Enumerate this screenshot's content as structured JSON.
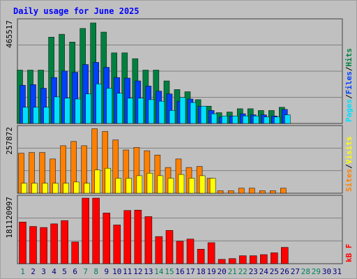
{
  "title": "Daily usage for June 2025",
  "colors": {
    "background": "#c0c0c0",
    "hits": "#008040",
    "files": "#0040ff",
    "pages": "#00e0ff",
    "visits": "#ffff00",
    "sites": "#ff8000",
    "kbytes": "#ff0000",
    "title": "#0000ff",
    "weekend_day": "#00805c",
    "weekday": "#000080"
  },
  "chart_data": [
    {
      "type": "bar",
      "panel": "hits-files-pages",
      "max_label": "465517",
      "legend": [
        {
          "key": "pages",
          "label": "Pages"
        },
        {
          "key": "files",
          "label": "Files"
        },
        {
          "key": "hits",
          "label": "Hits"
        }
      ],
      "ylim": [
        0,
        478000
      ],
      "x": [
        1,
        2,
        3,
        4,
        5,
        6,
        7,
        8,
        9,
        10,
        11,
        12,
        13,
        14,
        15,
        16,
        17,
        18,
        19,
        20,
        21,
        22,
        23,
        24,
        25,
        26,
        27,
        28,
        29,
        30,
        31
      ],
      "series": [
        {
          "key": "hits",
          "values": [
            247000,
            247000,
            247000,
            400000,
            413000,
            377000,
            440000,
            465517,
            423000,
            327000,
            327000,
            300000,
            247000,
            247000,
            197000,
            157000,
            147000,
            110000,
            80000,
            50000,
            53000,
            68000,
            68000,
            60000,
            60000,
            75000,
            0,
            0,
            0,
            0,
            0
          ]
        },
        {
          "key": "files",
          "values": [
            177000,
            180000,
            163000,
            213000,
            243000,
            237000,
            273000,
            283000,
            260000,
            213000,
            210000,
            197000,
            173000,
            150000,
            137000,
            103000,
            113000,
            80000,
            60000,
            30000,
            35000,
            45000,
            40000,
            40000,
            35000,
            65000,
            0,
            0,
            0,
            0,
            0
          ]
        },
        {
          "key": "pages",
          "values": [
            75000,
            75000,
            75000,
            123000,
            117000,
            113000,
            137000,
            183000,
            163000,
            140000,
            117000,
            117000,
            110000,
            103000,
            60000,
            120000,
            97000,
            80000,
            45000,
            35000,
            35000,
            35000,
            35000,
            30000,
            30000,
            40000,
            0,
            0,
            0,
            0,
            0
          ]
        }
      ]
    },
    {
      "type": "bar",
      "panel": "sites-visits",
      "max_label": "257872",
      "legend": [
        {
          "key": "sites",
          "label": "Sites"
        },
        {
          "key": "visits",
          "label": "Visits"
        }
      ],
      "ylim": [
        0,
        265000
      ],
      "x": [
        1,
        2,
        3,
        4,
        5,
        6,
        7,
        8,
        9,
        10,
        11,
        12,
        13,
        14,
        15,
        16,
        17,
        18,
        19,
        20,
        21,
        22,
        23,
        24,
        25,
        26,
        27,
        28,
        29,
        30,
        31
      ],
      "series": [
        {
          "key": "sites",
          "values": [
            160000,
            163000,
            163000,
            137000,
            190000,
            207000,
            190000,
            257872,
            247000,
            213000,
            173000,
            183000,
            170000,
            153000,
            103000,
            137000,
            103000,
            107000,
            60000,
            10000,
            10000,
            20000,
            20000,
            10000,
            10000,
            20000,
            0,
            0,
            0,
            0,
            0
          ]
        },
        {
          "key": "visits",
          "values": [
            40000,
            40000,
            40000,
            40000,
            40000,
            45000,
            40000,
            93000,
            100000,
            60000,
            60000,
            70000,
            80000,
            70000,
            60000,
            75000,
            60000,
            70000,
            60000,
            0,
            0,
            0,
            0,
            0,
            0,
            0,
            0,
            0,
            0,
            0,
            0
          ]
        }
      ]
    },
    {
      "type": "bar",
      "panel": "kbytes",
      "max_label": "181120997",
      "legend": [
        {
          "key": "kbytes",
          "label": "kB F"
        }
      ],
      "ylim": [
        0,
        185000000
      ],
      "x": [
        1,
        2,
        3,
        4,
        5,
        6,
        7,
        8,
        9,
        10,
        11,
        12,
        13,
        14,
        15,
        16,
        17,
        18,
        19,
        20,
        21,
        22,
        23,
        24,
        25,
        26,
        27,
        28,
        29,
        30,
        31
      ],
      "series": [
        {
          "key": "kbytes",
          "values": [
            115000000,
            103000000,
            100000000,
            110000000,
            119000000,
            60000000,
            181120997,
            181120997,
            140000000,
            107000000,
            147000000,
            148000000,
            130000000,
            75000000,
            92000000,
            62000000,
            68000000,
            40000000,
            58000000,
            12000000,
            14000000,
            22000000,
            22000000,
            25000000,
            30000000,
            45000000,
            0,
            0,
            0,
            0,
            0
          ]
        }
      ]
    }
  ],
  "days": [
    {
      "label": "1",
      "weekend": true
    },
    {
      "label": "2",
      "weekend": false
    },
    {
      "label": "3",
      "weekend": false
    },
    {
      "label": "4",
      "weekend": false
    },
    {
      "label": "5",
      "weekend": false
    },
    {
      "label": "6",
      "weekend": false
    },
    {
      "label": "7",
      "weekend": true
    },
    {
      "label": "8",
      "weekend": true
    },
    {
      "label": "9",
      "weekend": false
    },
    {
      "label": "10",
      "weekend": false
    },
    {
      "label": "11",
      "weekend": false
    },
    {
      "label": "12",
      "weekend": false
    },
    {
      "label": "13",
      "weekend": false
    },
    {
      "label": "14",
      "weekend": true
    },
    {
      "label": "15",
      "weekend": true
    },
    {
      "label": "16",
      "weekend": false
    },
    {
      "label": "17",
      "weekend": false
    },
    {
      "label": "18",
      "weekend": false
    },
    {
      "label": "19",
      "weekend": false
    },
    {
      "label": "20",
      "weekend": false
    },
    {
      "label": "21",
      "weekend": true
    },
    {
      "label": "22",
      "weekend": true
    },
    {
      "label": "23",
      "weekend": false
    },
    {
      "label": "24",
      "weekend": false
    },
    {
      "label": "25",
      "weekend": false
    },
    {
      "label": "26",
      "weekend": false
    },
    {
      "label": "27",
      "weekend": false
    },
    {
      "label": "28",
      "weekend": true
    },
    {
      "label": "29",
      "weekend": true
    },
    {
      "label": "30",
      "weekend": false
    },
    {
      "label": "31",
      "weekend": false
    }
  ]
}
